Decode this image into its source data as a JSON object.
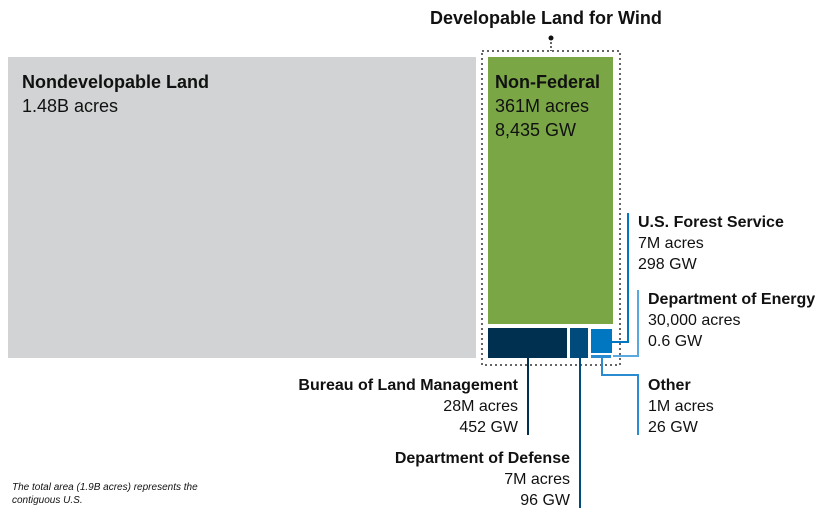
{
  "title": "Developable Land for Wind",
  "nondevelopable": {
    "label": "Nondevelopable Land",
    "acres": "1.48B acres"
  },
  "nonfederal": {
    "label": "Non-Federal",
    "acres": "361M acres",
    "gw": "8,435 GW"
  },
  "forest": {
    "label": "U.S. Forest Service",
    "acres": "7M acres",
    "gw": "298 GW"
  },
  "energy": {
    "label": "Department of Energy",
    "acres": "30,000 acres",
    "gw": "0.6 GW"
  },
  "other": {
    "label": "Other",
    "acres": "1M acres",
    "gw": "26 GW"
  },
  "blm": {
    "label": "Bureau of Land Management",
    "acres": "28M acres",
    "gw": "452 GW"
  },
  "dod": {
    "label": "Department of Defense",
    "acres": "7M acres",
    "gw": "96 GW"
  },
  "footnote": "The total area (1.9B acres) represents the contiguous U.S.",
  "colors": {
    "gray": "#d1d3d4",
    "green": "#7aa645",
    "blm": "#00304f",
    "dod": "#004b7c",
    "forest": "#0077c0",
    "energy": "#5aa8e0",
    "other": "#2a8bd0"
  }
}
